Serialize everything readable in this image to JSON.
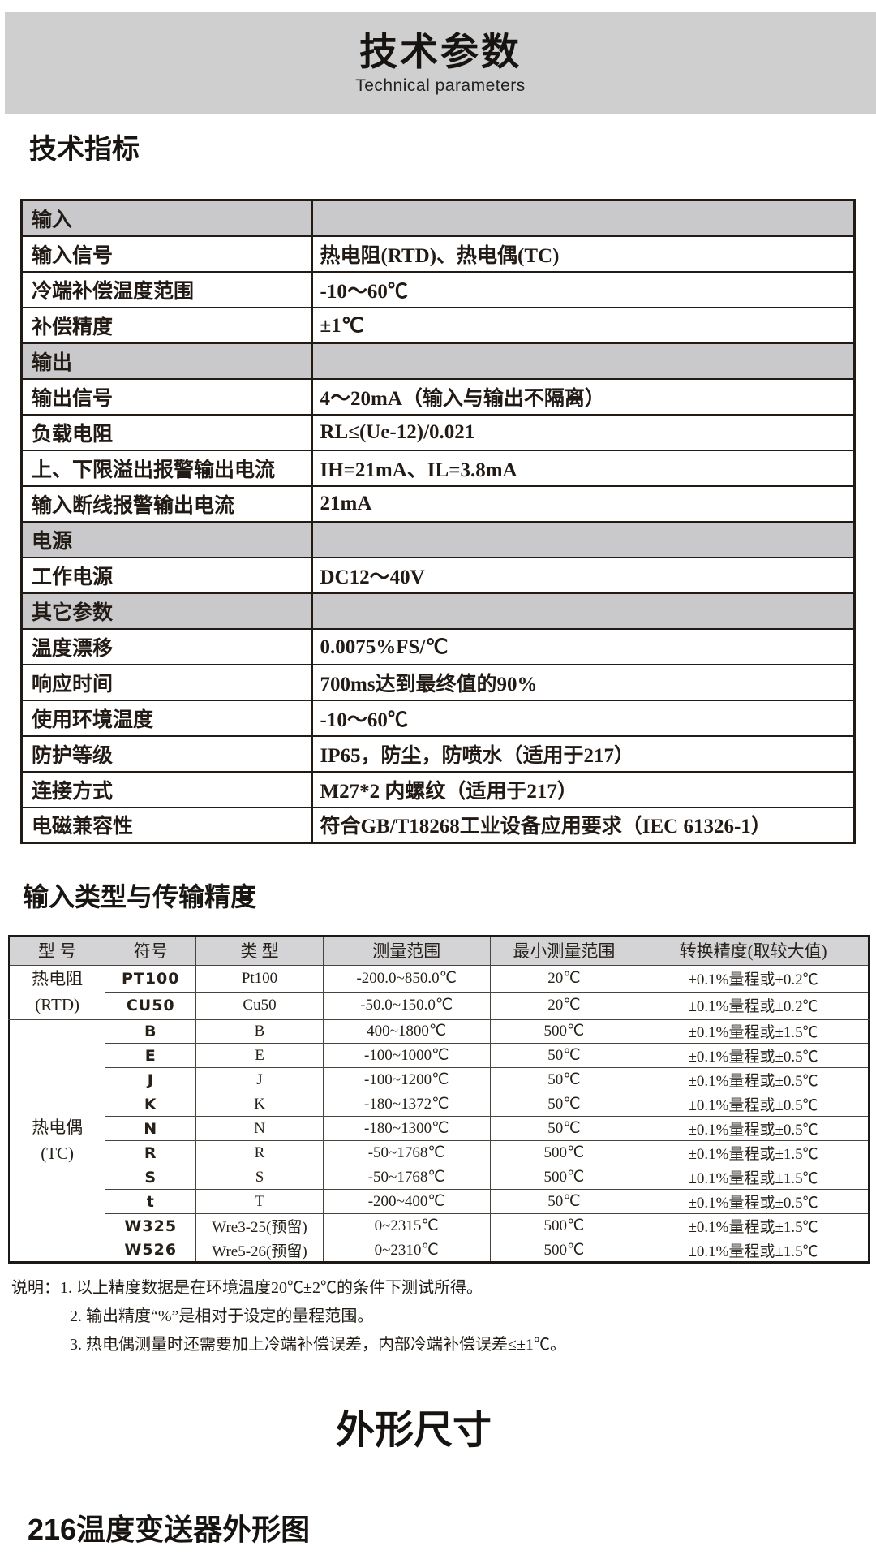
{
  "colors": {
    "banner_bg": "#d0cfd0",
    "section_row_bg": "#c9c9cb",
    "table_header_bg": "#d4d4d6",
    "text": "#1e1916"
  },
  "banner": {
    "title": "技术参数",
    "subtitle": "Technical parameters"
  },
  "section1": {
    "heading": "技术指标",
    "table": {
      "rows": [
        {
          "kind": "section",
          "label": "输入",
          "value": ""
        },
        {
          "kind": "data",
          "label": "输入信号",
          "value": "热电阻(RTD)、热电偶(TC)"
        },
        {
          "kind": "data",
          "label": "冷端补偿温度范围",
          "value": "-10～60℃"
        },
        {
          "kind": "data",
          "label": "补偿精度",
          "value": "±1℃"
        },
        {
          "kind": "section",
          "label": "输出",
          "value": ""
        },
        {
          "kind": "data",
          "label": "输出信号",
          "value": "4～20mA（输入与输出不隔离）"
        },
        {
          "kind": "data",
          "label": "负载电阻",
          "value": "RL≤(Ue-12)/0.021"
        },
        {
          "kind": "data",
          "label": "上、下限溢出报警输出电流",
          "value": "IH=21mA、IL=3.8mA"
        },
        {
          "kind": "data",
          "label": "输入断线报警输出电流",
          "value": "21mA"
        },
        {
          "kind": "section",
          "label": "电源",
          "value": ""
        },
        {
          "kind": "data",
          "label": "工作电源",
          "value": "DC12～40V"
        },
        {
          "kind": "section",
          "label": "其它参数",
          "value": ""
        },
        {
          "kind": "data",
          "label": "温度漂移",
          "value": "0.0075%FS/℃"
        },
        {
          "kind": "data",
          "label": "响应时间",
          "value": "700ms达到最终值的90%"
        },
        {
          "kind": "data",
          "label": "使用环境温度",
          "value": "-10～60℃"
        },
        {
          "kind": "data",
          "label": "防护等级",
          "value": "IP65，防尘，防喷水（适用于217）"
        },
        {
          "kind": "data",
          "label": "连接方式",
          "value": "M27*2 内螺纹（适用于217）"
        },
        {
          "kind": "data",
          "label": "电磁兼容性",
          "value": "符合GB/T18268工业设备应用要求（IEC 61326-1）"
        }
      ]
    }
  },
  "section2": {
    "heading": "输入类型与传输精度",
    "table": {
      "headers": [
        "型 号",
        "符号",
        "类 型",
        "测量范围",
        "最小测量范围",
        "转换精度(取较大值)"
      ],
      "groups": [
        {
          "model": "热电阻",
          "model_sub": "(RTD)",
          "rows": [
            {
              "symbol": "PT100",
              "type": "Pt100",
              "range": "-200.0~850.0℃",
              "min_range": "20℃",
              "accuracy": "±0.1%量程或±0.2℃"
            },
            {
              "symbol": "CU50",
              "type": "Cu50",
              "range": "-50.0~150.0℃",
              "min_range": "20℃",
              "accuracy": "±0.1%量程或±0.2℃"
            }
          ]
        },
        {
          "model": "热电偶",
          "model_sub": "(TC)",
          "rows": [
            {
              "symbol": "B",
              "type": "B",
              "range": "400~1800℃",
              "min_range": "500℃",
              "accuracy": "±0.1%量程或±1.5℃"
            },
            {
              "symbol": "E",
              "type": "E",
              "range": "-100~1000℃",
              "min_range": "50℃",
              "accuracy": "±0.1%量程或±0.5℃"
            },
            {
              "symbol": "J",
              "type": "J",
              "range": "-100~1200℃",
              "min_range": "50℃",
              "accuracy": "±0.1%量程或±0.5℃"
            },
            {
              "symbol": "K",
              "type": "K",
              "range": "-180~1372℃",
              "min_range": "50℃",
              "accuracy": "±0.1%量程或±0.5℃"
            },
            {
              "symbol": "N",
              "type": "N",
              "range": "-180~1300℃",
              "min_range": "50℃",
              "accuracy": "±0.1%量程或±0.5℃"
            },
            {
              "symbol": "R",
              "type": "R",
              "range": "-50~1768℃",
              "min_range": "500℃",
              "accuracy": "±0.1%量程或±1.5℃"
            },
            {
              "symbol": "S",
              "type": "S",
              "range": "-50~1768℃",
              "min_range": "500℃",
              "accuracy": "±0.1%量程或±1.5℃"
            },
            {
              "symbol": "t",
              "type": "T",
              "range": "-200~400℃",
              "min_range": "50℃",
              "accuracy": "±0.1%量程或±0.5℃"
            },
            {
              "symbol": "W325",
              "type": "Wre3-25(预留)",
              "range": "0~2315℃",
              "min_range": "500℃",
              "accuracy": "±0.1%量程或±1.5℃"
            },
            {
              "symbol": "W526",
              "type": "Wre5-26(预留)",
              "range": "0~2310℃",
              "min_range": "500℃",
              "accuracy": "±0.1%量程或±1.5℃"
            }
          ]
        }
      ]
    },
    "notes": {
      "prefix": "说明：",
      "items": [
        "1. 以上精度数据是在环境温度20℃±2℃的条件下测试所得。",
        "2. 输出精度“%”是相对于设定的量程范围。",
        "3. 热电偶测量时还需要加上冷端补偿误差，内部冷端补偿误差≤±1℃。"
      ]
    }
  },
  "section3": {
    "heading": "外形尺寸",
    "subheading": "216温度变送器外形图"
  }
}
